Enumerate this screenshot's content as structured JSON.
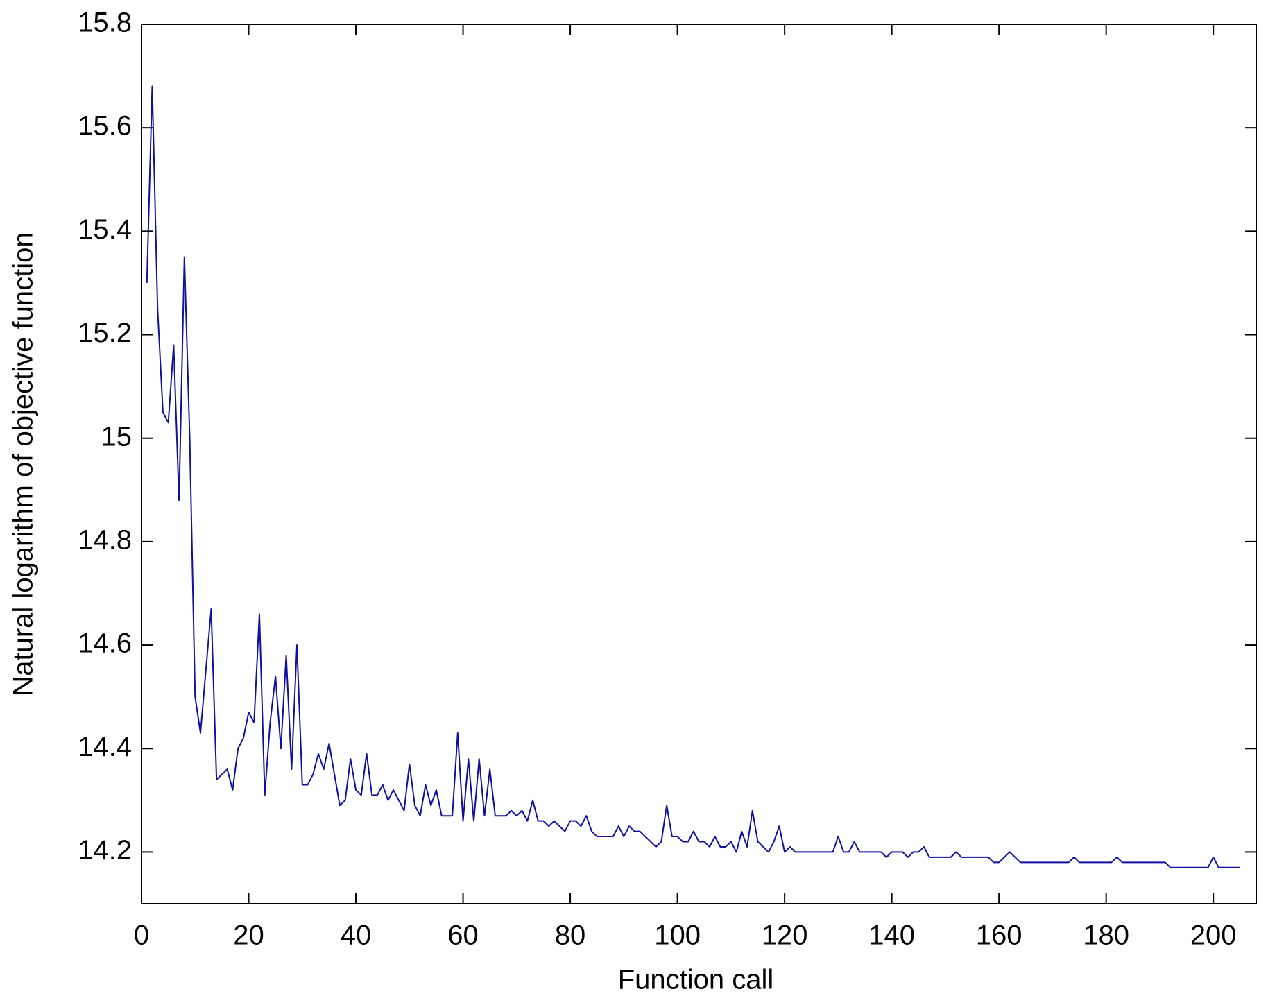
{
  "chart_data": {
    "type": "line",
    "xlabel": "Function call",
    "ylabel": "Natural logarithm of objective function",
    "xlim": [
      0,
      208
    ],
    "ylim": [
      14.1,
      15.8
    ],
    "xticks": [
      0,
      20,
      40,
      60,
      80,
      100,
      120,
      140,
      160,
      180,
      200
    ],
    "yticks": [
      14.2,
      14.4,
      14.6,
      14.8,
      15,
      15.2,
      15.4,
      15.6,
      15.8
    ],
    "grid": false,
    "x": [
      1,
      2,
      3,
      4,
      5,
      6,
      7,
      8,
      9,
      10,
      11,
      12,
      13,
      14,
      15,
      16,
      17,
      18,
      19,
      20,
      21,
      22,
      23,
      24,
      25,
      26,
      27,
      28,
      29,
      30,
      31,
      32,
      33,
      34,
      35,
      36,
      37,
      38,
      39,
      40,
      41,
      42,
      43,
      44,
      45,
      46,
      47,
      48,
      49,
      50,
      51,
      52,
      53,
      54,
      55,
      56,
      57,
      58,
      59,
      60,
      61,
      62,
      63,
      64,
      65,
      66,
      67,
      68,
      69,
      70,
      71,
      72,
      73,
      74,
      75,
      76,
      77,
      78,
      79,
      80,
      81,
      82,
      83,
      84,
      85,
      86,
      87,
      88,
      89,
      90,
      91,
      92,
      93,
      94,
      95,
      96,
      97,
      98,
      99,
      100,
      101,
      102,
      103,
      104,
      105,
      106,
      107,
      108,
      109,
      110,
      111,
      112,
      113,
      114,
      115,
      116,
      117,
      118,
      119,
      120,
      121,
      122,
      123,
      124,
      125,
      126,
      127,
      128,
      129,
      130,
      131,
      132,
      133,
      134,
      135,
      136,
      137,
      138,
      139,
      140,
      141,
      142,
      143,
      144,
      145,
      146,
      147,
      148,
      149,
      150,
      151,
      152,
      153,
      154,
      155,
      156,
      157,
      158,
      159,
      160,
      161,
      162,
      163,
      164,
      165,
      166,
      167,
      168,
      169,
      170,
      171,
      172,
      173,
      174,
      175,
      176,
      177,
      178,
      179,
      180,
      181,
      182,
      183,
      184,
      185,
      186,
      187,
      188,
      189,
      190,
      191,
      192,
      193,
      194,
      195,
      196,
      197,
      198,
      199,
      200,
      201,
      202,
      203,
      204,
      205
    ],
    "series": [
      {
        "color": "#1010a0",
        "values": [
          15.3,
          15.68,
          15.25,
          15.05,
          15.03,
          15.18,
          14.88,
          15.35,
          15.0,
          14.5,
          14.43,
          14.55,
          14.67,
          14.34,
          14.35,
          14.36,
          14.32,
          14.4,
          14.42,
          14.47,
          14.45,
          14.66,
          14.31,
          14.45,
          14.54,
          14.4,
          14.58,
          14.36,
          14.6,
          14.33,
          14.33,
          14.35,
          14.39,
          14.36,
          14.41,
          14.35,
          14.29,
          14.3,
          14.38,
          14.32,
          14.31,
          14.39,
          14.31,
          14.31,
          14.33,
          14.3,
          14.32,
          14.3,
          14.28,
          14.37,
          14.29,
          14.27,
          14.33,
          14.29,
          14.32,
          14.27,
          14.27,
          14.27,
          14.43,
          14.26,
          14.38,
          14.26,
          14.38,
          14.27,
          14.36,
          14.27,
          14.27,
          14.27,
          14.28,
          14.27,
          14.28,
          14.26,
          14.3,
          14.26,
          14.26,
          14.25,
          14.26,
          14.25,
          14.24,
          14.26,
          14.26,
          14.25,
          14.27,
          14.24,
          14.23,
          14.23,
          14.23,
          14.23,
          14.25,
          14.23,
          14.25,
          14.24,
          14.24,
          14.23,
          14.22,
          14.21,
          14.22,
          14.29,
          14.23,
          14.23,
          14.22,
          14.22,
          14.24,
          14.22,
          14.22,
          14.21,
          14.23,
          14.21,
          14.21,
          14.22,
          14.2,
          14.24,
          14.21,
          14.28,
          14.22,
          14.21,
          14.2,
          14.22,
          14.25,
          14.2,
          14.21,
          14.2,
          14.2,
          14.2,
          14.2,
          14.2,
          14.2,
          14.2,
          14.2,
          14.23,
          14.2,
          14.2,
          14.22,
          14.2,
          14.2,
          14.2,
          14.2,
          14.2,
          14.19,
          14.2,
          14.2,
          14.2,
          14.19,
          14.2,
          14.2,
          14.21,
          14.19,
          14.19,
          14.19,
          14.19,
          14.19,
          14.2,
          14.19,
          14.19,
          14.19,
          14.19,
          14.19,
          14.19,
          14.18,
          14.18,
          14.19,
          14.2,
          14.19,
          14.18,
          14.18,
          14.18,
          14.18,
          14.18,
          14.18,
          14.18,
          14.18,
          14.18,
          14.18,
          14.19,
          14.18,
          14.18,
          14.18,
          14.18,
          14.18,
          14.18,
          14.18,
          14.19,
          14.18,
          14.18,
          14.18,
          14.18,
          14.18,
          14.18,
          14.18,
          14.18,
          14.18,
          14.17,
          14.17,
          14.17,
          14.17,
          14.17,
          14.17,
          14.17,
          14.17,
          14.19,
          14.17,
          14.17,
          14.17,
          14.17,
          14.17
        ]
      }
    ]
  }
}
